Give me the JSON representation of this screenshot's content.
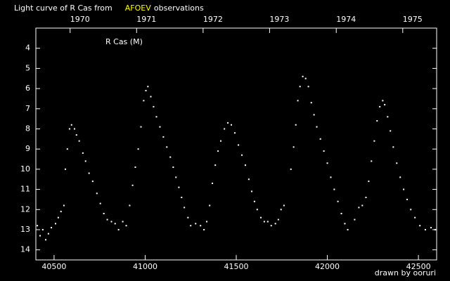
{
  "chart_data": {
    "type": "scatter",
    "title": "Light curve of R Cas from",
    "title_highlight": "AFOEV",
    "title_highlight_color": "#ffff00",
    "title_suffix": "observations",
    "credit": "drawn by ooruri",
    "credit_color": "#00ccff",
    "background": "#000000",
    "xlim": [
      40400,
      42600
    ],
    "xticks": [
      40500,
      41000,
      41500,
      42000,
      42500
    ],
    "x2ticks": [
      {
        "value": 40588,
        "label": "1970"
      },
      {
        "value": 40953,
        "label": "1971"
      },
      {
        "value": 41318,
        "label": "1972"
      },
      {
        "value": 41683,
        "label": "1973"
      },
      {
        "value": 42049,
        "label": "1974"
      },
      {
        "value": 42414,
        "label": "1975"
      }
    ],
    "ylim": [
      14.5,
      3
    ],
    "yticks": [
      4,
      5,
      6,
      7,
      8,
      9,
      10,
      11,
      12,
      13,
      14
    ],
    "series": [
      {
        "name": "R Cas (M)",
        "color": "#ffffff",
        "x": [
          40408,
          40423,
          40438,
          40454,
          40469,
          40485,
          40508,
          40523,
          40538,
          40554,
          40562,
          40573,
          40585,
          40596,
          40612,
          40623,
          40638,
          40658,
          40673,
          40692,
          40712,
          40735,
          40754,
          40773,
          40792,
          40815,
          40835,
          40854,
          40877,
          40896,
          40915,
          40931,
          40946,
          40962,
          40977,
          40992,
          41004,
          41015,
          41031,
          41046,
          41062,
          41081,
          41100,
          41119,
          41138,
          41154,
          41169,
          41185,
          41200,
          41215,
          41235,
          41250,
          41277,
          41304,
          41323,
          41338,
          41354,
          41369,
          41385,
          41400,
          41415,
          41435,
          41454,
          41473,
          41492,
          41512,
          41531,
          41550,
          41569,
          41585,
          41600,
          41615,
          41635,
          41654,
          41673,
          41692,
          41715,
          41731,
          41746,
          41762,
          41800,
          41815,
          41827,
          41838,
          41850,
          41865,
          41881,
          41896,
          41912,
          41927,
          41942,
          41962,
          41981,
          42000,
          42019,
          42038,
          42058,
          42077,
          42096,
          42112,
          42150,
          42173,
          42192,
          42212,
          42227,
          42242,
          42258,
          42273,
          42288,
          42304,
          42315,
          42331,
          42346,
          42362,
          42381,
          42400,
          42419,
          42438,
          42458,
          42481,
          42508,
          42538,
          42569,
          42592
        ],
        "values": [
          12.8,
          13.3,
          13.0,
          13.5,
          13.2,
          12.9,
          12.7,
          12.4,
          12.1,
          11.8,
          10.0,
          9.0,
          8.0,
          7.8,
          8.0,
          8.3,
          8.6,
          9.2,
          9.6,
          10.2,
          10.6,
          11.2,
          11.7,
          12.2,
          12.5,
          12.6,
          12.7,
          13.0,
          12.6,
          12.8,
          11.8,
          10.8,
          9.9,
          9.0,
          7.9,
          6.6,
          6.1,
          5.9,
          6.4,
          6.9,
          7.4,
          7.9,
          8.4,
          8.9,
          9.4,
          9.9,
          10.4,
          10.9,
          11.4,
          11.9,
          12.4,
          12.8,
          12.7,
          12.8,
          13.0,
          12.6,
          11.8,
          10.7,
          9.8,
          9.1,
          8.6,
          8.0,
          7.7,
          7.8,
          8.2,
          8.8,
          9.3,
          9.8,
          10.5,
          11.1,
          11.6,
          12.0,
          12.4,
          12.6,
          12.6,
          12.8,
          12.7,
          12.5,
          12.0,
          11.8,
          10.0,
          8.9,
          7.8,
          6.6,
          5.9,
          5.4,
          5.5,
          5.9,
          6.7,
          7.3,
          7.9,
          8.5,
          9.1,
          9.7,
          10.4,
          11.0,
          11.6,
          12.2,
          12.7,
          13.0,
          12.5,
          11.9,
          11.8,
          11.4,
          10.6,
          9.6,
          8.6,
          7.6,
          6.9,
          6.6,
          6.8,
          7.4,
          8.1,
          8.9,
          9.7,
          10.4,
          11.0,
          11.5,
          12.0,
          12.4,
          12.8,
          13.0,
          12.9,
          13.0
        ]
      }
    ]
  }
}
